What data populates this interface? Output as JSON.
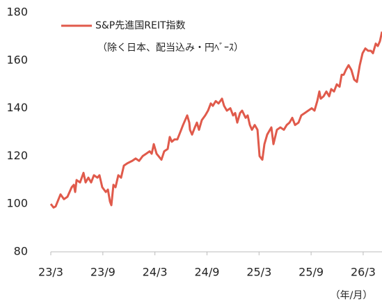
{
  "chart_data": {
    "type": "line",
    "series": [
      {
        "name": "S&P先進国REIT指数",
        "color": "#e05a4b",
        "x": [
          0,
          0.32,
          0.56,
          1.12,
          1.52,
          1.92,
          2.41,
          2.65,
          2.81,
          2.97,
          3.37,
          3.77,
          4.01,
          4.33,
          4.65,
          4.97,
          5.37,
          5.61,
          5.93,
          6.34,
          6.58,
          6.82,
          6.98,
          7.22,
          7.46,
          7.78,
          8.1,
          8.42,
          8.82,
          9.38,
          9.78,
          10.18,
          10.59,
          10.99,
          11.39,
          11.63,
          11.87,
          12.19,
          12.75,
          13.07,
          13.47,
          13.71,
          13.95,
          14.27,
          14.59,
          14.92,
          15.24,
          15.48,
          15.72,
          15.96,
          16.04,
          16.28,
          16.6,
          16.84,
          17.08,
          17.4,
          17.8,
          18.12,
          18.44,
          18.68,
          19.01,
          19.33,
          19.73,
          19.97,
          20.29,
          20.69,
          21.01,
          21.25,
          21.49,
          21.81,
          22.05,
          22.45,
          22.69,
          22.94,
          23.18,
          23.5,
          23.82,
          24.06,
          24.38,
          24.62,
          24.94,
          25.42,
          25.66,
          26.06,
          26.46,
          26.86,
          27.19,
          27.51,
          27.83,
          28.15,
          28.55,
          28.87,
          29.27,
          29.67,
          30.07,
          30.39,
          30.71,
          30.95,
          31.11,
          31.44,
          31.76,
          32.08,
          32.32,
          32.64,
          32.96,
          33.28,
          33.52,
          33.76,
          34,
          34.32,
          34.64,
          34.96,
          35.28,
          35.61,
          35.93,
          36.25,
          36.57,
          36.89,
          37.13,
          37.45,
          37.69,
          37.93,
          38.17
        ],
        "values": [
          100,
          98.5,
          99,
          104,
          102,
          103,
          107,
          108,
          105,
          110,
          109,
          113,
          109,
          111,
          109,
          112,
          111,
          112,
          107,
          105,
          106,
          101,
          99.5,
          108,
          107,
          112,
          111,
          116,
          117,
          118,
          119,
          118,
          120,
          121,
          122,
          121,
          125,
          121,
          118.5,
          122,
          123,
          128,
          126,
          127,
          127,
          130,
          133,
          135,
          137,
          134,
          131,
          129,
          132,
          134,
          131,
          135,
          137,
          139,
          142,
          141,
          143,
          142,
          144,
          141,
          139,
          140,
          137,
          138,
          134,
          138,
          139,
          136,
          137,
          133,
          131,
          133,
          131,
          120,
          118.5,
          125,
          129,
          132,
          125,
          131,
          132,
          131,
          133,
          134,
          136,
          133,
          134,
          137,
          138,
          139,
          140,
          139,
          143,
          147,
          144,
          145,
          147,
          145,
          148,
          147,
          150,
          149,
          154,
          154,
          156,
          158,
          156,
          152,
          151,
          158,
          163,
          165,
          164,
          164,
          163,
          167,
          166,
          168,
          172
        ]
      }
    ],
    "note": "（除く日本、配当込み・円ﾍﾞｰｽ）",
    "x_unit": "（年/月）",
    "xlim": [
      0,
      38.17
    ],
    "xticks": [
      {
        "value": 0,
        "label": "23/3"
      },
      {
        "value": 6,
        "label": "23/9"
      },
      {
        "value": 12,
        "label": "24/3"
      },
      {
        "value": 18,
        "label": "24/9"
      },
      {
        "value": 24,
        "label": "25/3"
      },
      {
        "value": 30,
        "label": "25/9"
      },
      {
        "value": 36,
        "label": "26/3"
      }
    ],
    "ylim": [
      80,
      180
    ],
    "yticks": [
      80,
      100,
      120,
      140,
      160,
      180
    ],
    "legend": "top-left"
  }
}
